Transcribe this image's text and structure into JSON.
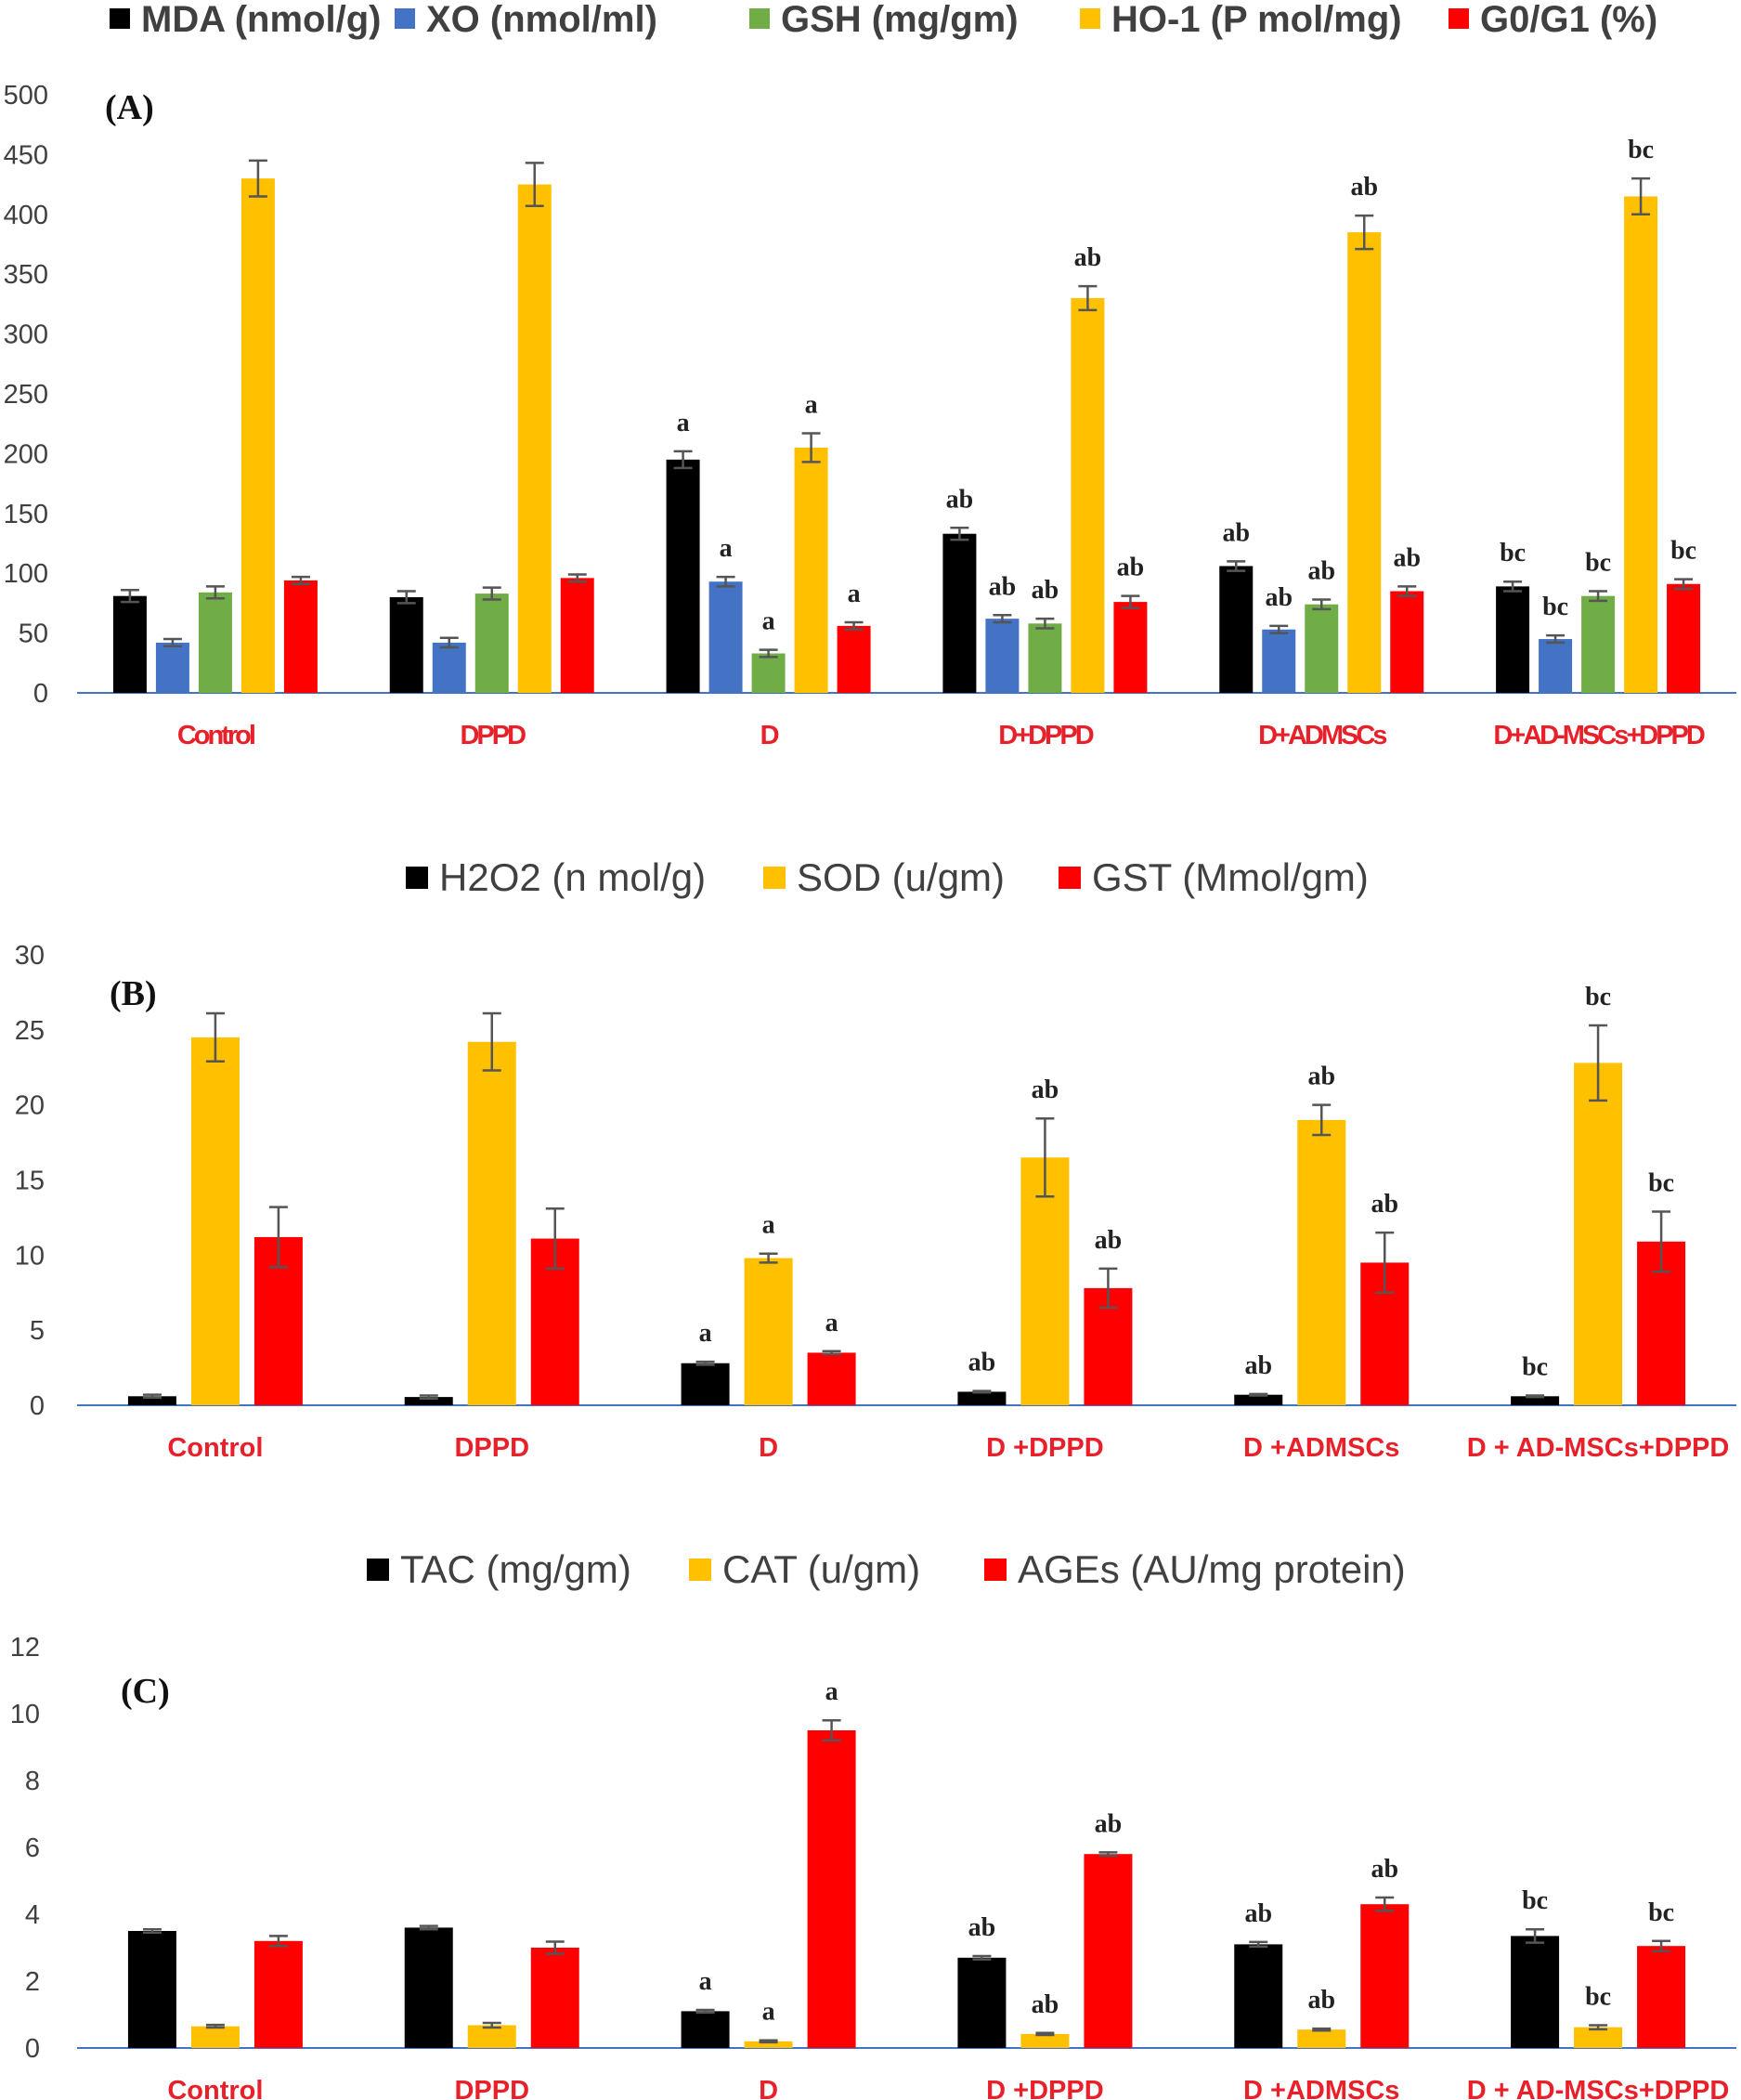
{
  "chart_data": [
    {
      "type": "bar",
      "panel_label": "(A)",
      "categories": [
        "Control",
        "DPPD",
        "D",
        "D+DPPD",
        "D+ADMSCs",
        "D+AD-MSCs+DPPD"
      ],
      "ylim": [
        0,
        500
      ],
      "yticks": [
        0,
        50,
        100,
        150,
        200,
        250,
        300,
        350,
        400,
        450,
        500
      ],
      "series": [
        {
          "name": "MDA (nmol/g)",
          "color": "#000000",
          "values": [
            81,
            80,
            195,
            133,
            106,
            89
          ],
          "errors": [
            5,
            5,
            7,
            5,
            4,
            4
          ],
          "labels": [
            "",
            "",
            "a",
            "ab",
            "ab",
            "bc"
          ]
        },
        {
          "name": "XO (nmol/ml)",
          "color": "#4472c4",
          "values": [
            42,
            42,
            93,
            62,
            53,
            45
          ],
          "errors": [
            3,
            4,
            4,
            3,
            3,
            3
          ],
          "labels": [
            "",
            "",
            "a",
            "ab",
            "ab",
            "bc"
          ]
        },
        {
          "name": "GSH (mg/gm)",
          "color": "#70ad47",
          "values": [
            84,
            83,
            33,
            58,
            74,
            81
          ],
          "errors": [
            5,
            5,
            3,
            4,
            4,
            4
          ],
          "labels": [
            "",
            "",
            "a",
            "ab",
            "ab",
            "bc"
          ]
        },
        {
          "name": "HO-1 (P mol/mg)",
          "color": "#ffc000",
          "values": [
            430,
            425,
            205,
            330,
            385,
            415
          ],
          "errors": [
            15,
            18,
            12,
            10,
            14,
            15
          ],
          "labels": [
            "",
            "",
            "a",
            "ab",
            "ab",
            "bc"
          ]
        },
        {
          "name": "G0/G1 (%)",
          "color": "#ff0000",
          "values": [
            94,
            96,
            56,
            76,
            85,
            91
          ],
          "errors": [
            3,
            3,
            3,
            5,
            4,
            4
          ],
          "labels": [
            "",
            "",
            "a",
            "ab",
            "ab",
            "bc"
          ]
        }
      ]
    },
    {
      "type": "bar",
      "panel_label": "(B)",
      "categories": [
        "Control",
        "DPPD",
        "D",
        "D +DPPD",
        "D +ADMSCs",
        "D + AD-MSCs+DPPD"
      ],
      "ylim": [
        0,
        30
      ],
      "yticks": [
        0,
        5,
        10,
        15,
        20,
        25,
        30
      ],
      "series": [
        {
          "name": "H2O2 (n mol/g)",
          "color": "#000000",
          "values": [
            0.6,
            0.55,
            2.8,
            0.9,
            0.7,
            0.6
          ],
          "errors": [
            0.1,
            0.1,
            0.1,
            0.05,
            0.05,
            0.05
          ],
          "labels": [
            "",
            "",
            "a",
            "ab",
            "ab",
            "bc"
          ]
        },
        {
          "name": "SOD (u/gm)",
          "color": "#ffc000",
          "values": [
            24.5,
            24.2,
            9.8,
            16.5,
            19,
            22.8
          ],
          "errors": [
            1.6,
            1.9,
            0.3,
            2.6,
            1.0,
            2.5
          ],
          "labels": [
            "",
            "",
            "a",
            "ab",
            "ab",
            "bc"
          ]
        },
        {
          "name": "GST (Mmol/gm)",
          "color": "#ff0000",
          "values": [
            11.2,
            11.1,
            3.5,
            7.8,
            9.5,
            10.9
          ],
          "errors": [
            2.0,
            2.0,
            0.1,
            1.3,
            2.0,
            2.0
          ],
          "labels": [
            "",
            "",
            "a",
            "ab",
            "ab",
            "bc"
          ]
        }
      ]
    },
    {
      "type": "bar",
      "panel_label": "(C)",
      "categories": [
        "Control",
        "DPPD",
        "D",
        "D +DPPD",
        "D +ADMSCs",
        "D + AD-MSCs+DPPD"
      ],
      "ylim": [
        0,
        12
      ],
      "yticks": [
        0,
        2,
        4,
        6,
        8,
        10,
        12
      ],
      "series": [
        {
          "name": "TAC (mg/gm)",
          "color": "#000000",
          "values": [
            3.5,
            3.6,
            1.1,
            2.7,
            3.1,
            3.35
          ],
          "errors": [
            0.05,
            0.05,
            0.04,
            0.05,
            0.07,
            0.2
          ],
          "labels": [
            "",
            "",
            "a",
            "ab",
            "ab",
            "bc"
          ]
        },
        {
          "name": "CAT (u/gm)",
          "color": "#ffc000",
          "values": [
            0.65,
            0.68,
            0.2,
            0.42,
            0.55,
            0.62
          ],
          "errors": [
            0.04,
            0.07,
            0.03,
            0.03,
            0.03,
            0.06
          ],
          "labels": [
            "",
            "",
            "a",
            "ab",
            "ab",
            "bc"
          ]
        },
        {
          "name": "AGEs (AU/mg protein)",
          "color": "#ff0000",
          "values": [
            3.2,
            3.0,
            9.5,
            5.8,
            4.3,
            3.05
          ],
          "errors": [
            0.15,
            0.18,
            0.3,
            0.05,
            0.2,
            0.15
          ],
          "labels": [
            "",
            "",
            "a",
            "ab",
            "ab",
            "bc"
          ]
        }
      ]
    }
  ]
}
